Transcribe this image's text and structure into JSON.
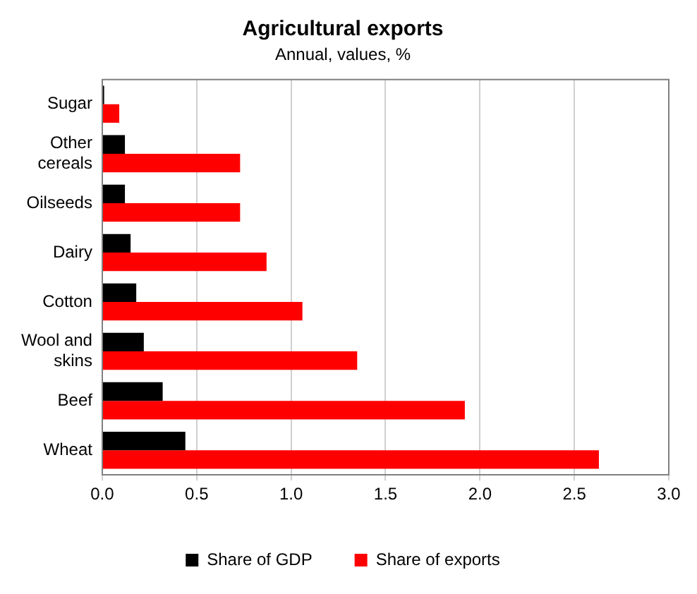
{
  "chart_data": {
    "type": "bar",
    "orientation": "horizontal",
    "title": "Agricultural exports",
    "subtitle": "Annual, values, %",
    "categories": [
      "Sugar",
      "Other cereals",
      "Oilseeds",
      "Dairy",
      "Cotton",
      "Wool and skins",
      "Beef",
      "Wheat"
    ],
    "series": [
      {
        "name": "Share of GDP",
        "color": "#000000",
        "values": [
          0.01,
          0.12,
          0.12,
          0.15,
          0.18,
          0.22,
          0.32,
          0.44
        ]
      },
      {
        "name": "Share of exports",
        "color": "#ff0000",
        "values": [
          0.09,
          0.73,
          0.73,
          0.87,
          1.06,
          1.35,
          1.92,
          2.63
        ]
      }
    ],
    "xlim": [
      0,
      3
    ],
    "xticks": [
      {
        "value": 0,
        "label": "0.0"
      },
      0.5,
      {
        "value": 1,
        "label": "1.0"
      },
      1.5,
      {
        "value": 2,
        "label": "2.0"
      },
      2.5,
      {
        "value": 3,
        "label": "3.0"
      }
    ],
    "grid": "x",
    "legend": "bottom"
  }
}
